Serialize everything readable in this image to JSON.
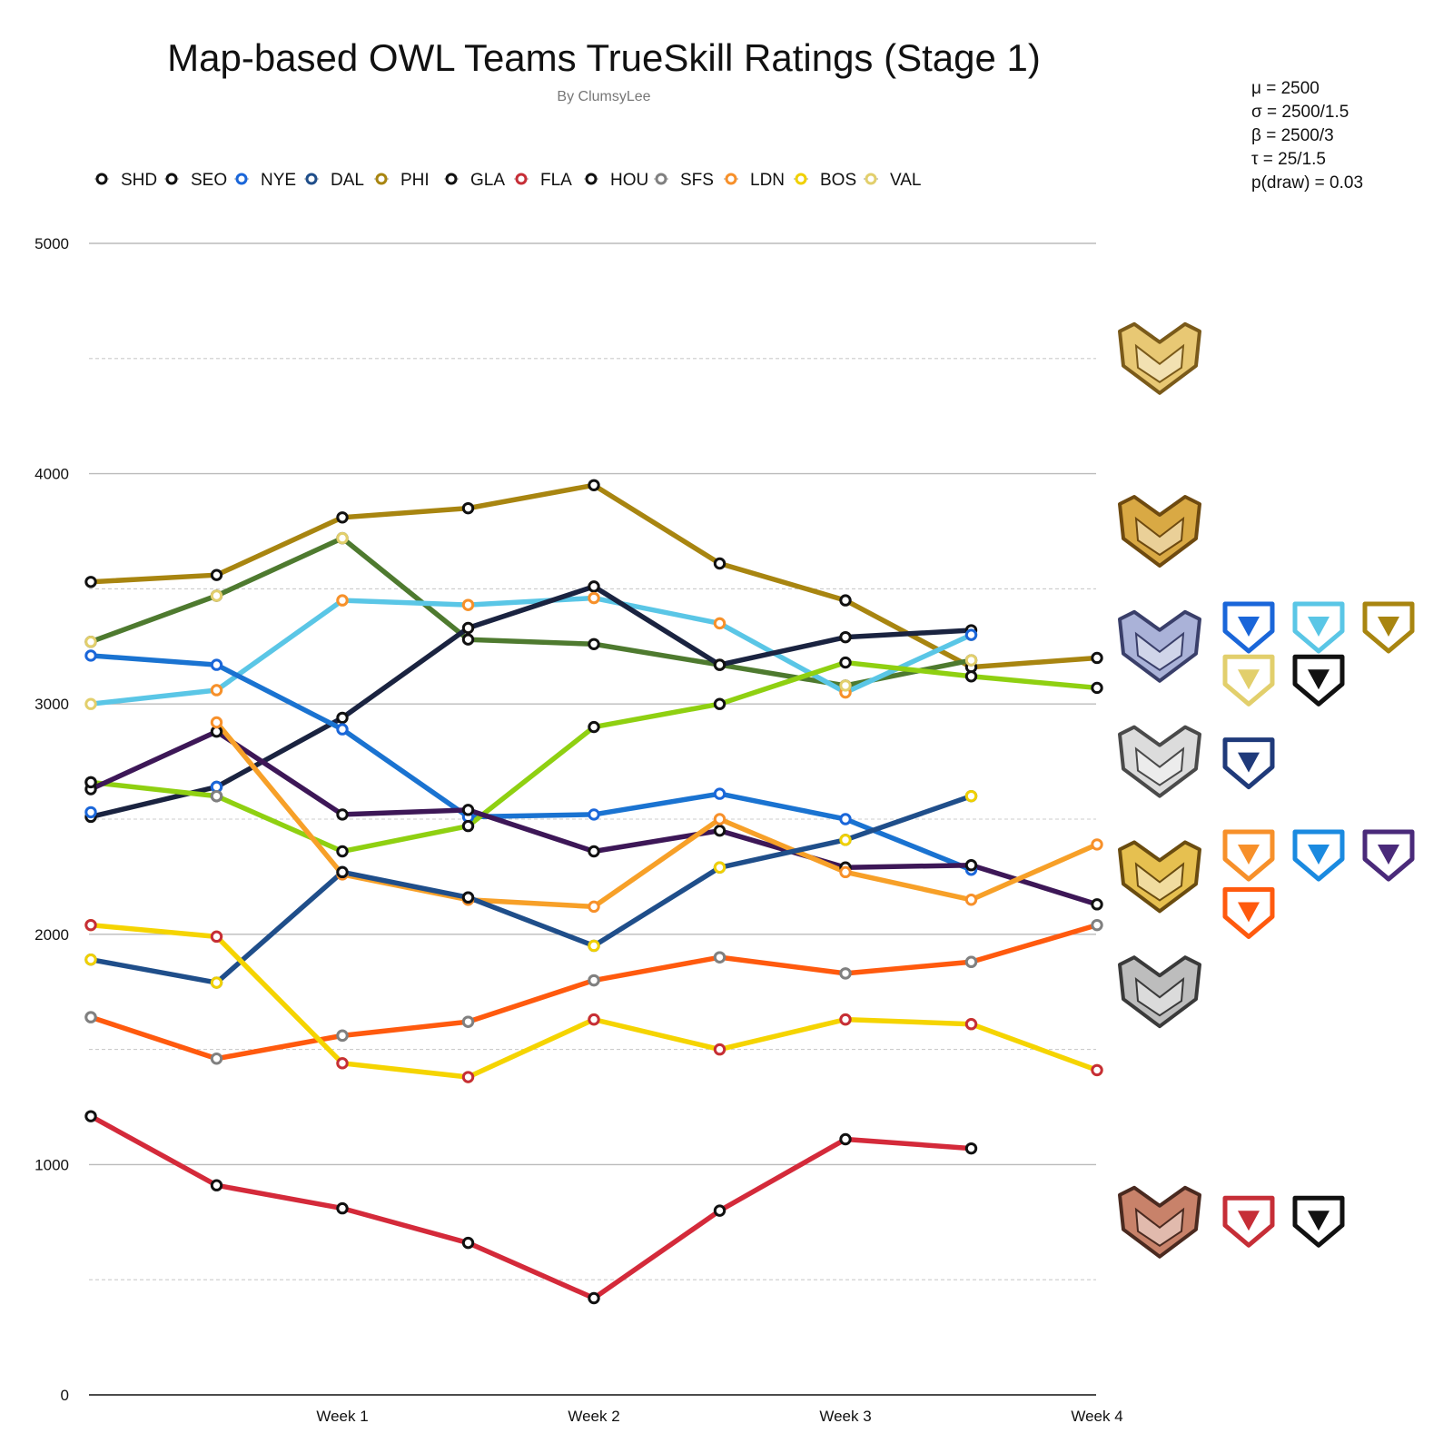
{
  "chart_data": {
    "type": "line",
    "title": "Map-based OWL Teams TrueSkill Ratings (Stage 1)",
    "subtitle": "By ClumsyLee",
    "x_tick_labels": [
      "Week 1",
      "Week 2",
      "Week 3",
      "Week 4"
    ],
    "y_tick_labels": [
      "0",
      "1000",
      "2000",
      "3000",
      "4000",
      "5000"
    ],
    "ylim": [
      0,
      5000
    ],
    "grid": true,
    "legend_position": "top",
    "parameters": [
      "μ = 2500",
      "σ = 2500/1.5",
      "β = 2500/3",
      "τ = 25/1.5",
      "p(draw) = 0.03"
    ],
    "legend": [
      {
        "label": "SHD",
        "color": "#111111"
      },
      {
        "label": "SEO",
        "color": "#111111"
      },
      {
        "label": "NYE",
        "color": "#1a66d9"
      },
      {
        "label": "DAL",
        "color": "#1f4e8a"
      },
      {
        "label": "PHI",
        "color": "#a88510"
      },
      {
        "label": "GLA",
        "color": "#111111"
      },
      {
        "label": "FLA",
        "color": "#c62e37"
      },
      {
        "label": "HOU",
        "color": "#111111"
      },
      {
        "label": "SFS",
        "color": "#808080"
      },
      {
        "label": "LDN",
        "color": "#f7902a"
      },
      {
        "label": "BOS",
        "color": "#f0d000"
      },
      {
        "label": "VAL",
        "color": "#e2cf6c"
      }
    ],
    "series": [
      {
        "color": "#a88510",
        "marker": "#111111",
        "points": [
          [
            0,
            3530
          ],
          [
            1,
            3560
          ],
          [
            2,
            3810
          ],
          [
            3,
            3850
          ],
          [
            4,
            3950
          ],
          [
            5,
            3610
          ],
          [
            6,
            3450
          ],
          [
            7,
            3160
          ],
          [
            8,
            3200
          ]
        ]
      },
      {
        "color": "#4e7a2f",
        "marker": "#111111",
        "points": [
          [
            0,
            3270
          ],
          [
            1,
            3470
          ],
          [
            2,
            3720
          ],
          [
            3,
            3280
          ],
          [
            4,
            3260
          ],
          [
            5,
            3170
          ],
          [
            6,
            3080
          ],
          [
            7,
            3190
          ]
        ]
      },
      {
        "color": "#5ac6e6",
        "marker": "#e2cf6c",
        "points": [
          [
            0,
            3000
          ],
          [
            1,
            3060
          ],
          [
            2,
            3450
          ],
          [
            3,
            3430
          ],
          [
            4,
            3460
          ],
          [
            5,
            3350
          ],
          [
            6,
            3050
          ],
          [
            7,
            3300
          ]
        ]
      },
      {
        "color": "#1a2340",
        "marker": "#111111",
        "points": [
          [
            0,
            2510
          ],
          [
            1,
            2640
          ],
          [
            2,
            2940
          ],
          [
            3,
            3330
          ],
          [
            4,
            3510
          ],
          [
            5,
            3170
          ],
          [
            6,
            3290
          ],
          [
            7,
            3320
          ]
        ]
      },
      {
        "color": "#1a73d1",
        "marker": "#1a66d9",
        "points": [
          [
            0,
            3210
          ],
          [
            1,
            3170
          ],
          [
            2,
            2890
          ],
          [
            3,
            2510
          ],
          [
            4,
            2520
          ],
          [
            5,
            2610
          ],
          [
            6,
            2500
          ],
          [
            7,
            2280
          ]
        ]
      },
      {
        "color": "#8fd011",
        "marker": "#111111",
        "points": [
          [
            0,
            2660
          ],
          [
            1,
            2600
          ],
          [
            2,
            2360
          ],
          [
            3,
            2470
          ],
          [
            4,
            2900
          ],
          [
            5,
            3000
          ],
          [
            6,
            3180
          ],
          [
            7,
            3120
          ],
          [
            8,
            3070
          ]
        ]
      },
      {
        "color": "#3d1757",
        "marker": "#111111",
        "points": [
          [
            0,
            2630
          ],
          [
            1,
            2880
          ],
          [
            2,
            2520
          ],
          [
            3,
            2540
          ],
          [
            4,
            2360
          ],
          [
            5,
            2450
          ],
          [
            6,
            2290
          ],
          [
            7,
            2300
          ],
          [
            8,
            2130
          ]
        ]
      },
      {
        "color": "#f7a028",
        "marker": "#f7902a",
        "points": [
          [
            1,
            2920
          ],
          [
            2,
            2260
          ],
          [
            3,
            2150
          ],
          [
            4,
            2120
          ],
          [
            5,
            2500
          ],
          [
            6,
            2270
          ],
          [
            7,
            2150
          ],
          [
            8,
            2390
          ]
        ]
      },
      {
        "color": "#1f4e8a",
        "marker": "#1f4e8a",
        "points": [
          [
            0,
            1890
          ],
          [
            1,
            1790
          ],
          [
            2,
            2270
          ],
          [
            3,
            2160
          ],
          [
            4,
            1950
          ],
          [
            5,
            2290
          ],
          [
            6,
            2410
          ],
          [
            7,
            2600
          ]
        ]
      },
      {
        "color": "#ff5a0e",
        "marker": "#808080",
        "points": [
          [
            0,
            1640
          ],
          [
            1,
            1460
          ],
          [
            2,
            1560
          ],
          [
            3,
            1620
          ],
          [
            4,
            1800
          ],
          [
            5,
            1900
          ],
          [
            6,
            1830
          ],
          [
            7,
            1880
          ],
          [
            8,
            2040
          ]
        ]
      },
      {
        "color": "#f5d400",
        "marker": "#f0d000",
        "points": [
          [
            0,
            2040
          ],
          [
            1,
            1990
          ],
          [
            2,
            1440
          ],
          [
            3,
            1380
          ],
          [
            4,
            1630
          ],
          [
            5,
            1500
          ],
          [
            6,
            1630
          ],
          [
            7,
            1610
          ],
          [
            8,
            1410
          ]
        ]
      },
      {
        "color": "#d42a3a",
        "marker": "#111111",
        "points": [
          [
            0,
            1210
          ],
          [
            1,
            910
          ],
          [
            2,
            810
          ],
          [
            3,
            660
          ],
          [
            4,
            420
          ],
          [
            5,
            800
          ],
          [
            6,
            1110
          ],
          [
            7,
            1070
          ]
        ]
      }
    ],
    "extra_markers": [
      {
        "x": 0,
        "y": 2530,
        "marker": "#1a66d9"
      },
      {
        "x": 0,
        "y": 2040,
        "marker": "#c62e37"
      },
      {
        "x": 0,
        "y": 1890,
        "marker": "#f0d000"
      },
      {
        "x": 0,
        "y": 1640,
        "marker": "#808080"
      },
      {
        "x": 0,
        "y": 2660,
        "marker": "#111111"
      },
      {
        "x": 0,
        "y": 3270,
        "marker": "#e2cf6c"
      },
      {
        "x": 1,
        "y": 3060,
        "marker": "#f7902a"
      },
      {
        "x": 1,
        "y": 3470,
        "marker": "#e2cf6c"
      },
      {
        "x": 1,
        "y": 2640,
        "marker": "#1a66d9"
      },
      {
        "x": 1,
        "y": 1990,
        "marker": "#c62e37"
      },
      {
        "x": 1,
        "y": 1790,
        "marker": "#f0d000"
      },
      {
        "x": 1,
        "y": 2600,
        "marker": "#808080"
      },
      {
        "x": 2,
        "y": 3720,
        "marker": "#e2cf6c"
      },
      {
        "x": 2,
        "y": 3450,
        "marker": "#f7902a"
      },
      {
        "x": 2,
        "y": 1440,
        "marker": "#c62e37"
      },
      {
        "x": 2,
        "y": 1560,
        "marker": "#808080"
      },
      {
        "x": 2,
        "y": 2270,
        "marker": "#111111"
      },
      {
        "x": 3,
        "y": 3430,
        "marker": "#f7902a"
      },
      {
        "x": 3,
        "y": 1380,
        "marker": "#c62e37"
      },
      {
        "x": 3,
        "y": 1620,
        "marker": "#808080"
      },
      {
        "x": 3,
        "y": 2160,
        "marker": "#111111"
      },
      {
        "x": 4,
        "y": 3460,
        "marker": "#f7902a"
      },
      {
        "x": 4,
        "y": 1950,
        "marker": "#f0d000"
      },
      {
        "x": 4,
        "y": 1630,
        "marker": "#c62e37"
      },
      {
        "x": 4,
        "y": 1800,
        "marker": "#808080"
      },
      {
        "x": 5,
        "y": 3350,
        "marker": "#f7902a"
      },
      {
        "x": 5,
        "y": 2290,
        "marker": "#f0d000"
      },
      {
        "x": 5,
        "y": 1500,
        "marker": "#c62e37"
      },
      {
        "x": 5,
        "y": 1900,
        "marker": "#808080"
      },
      {
        "x": 6,
        "y": 3050,
        "marker": "#f7902a"
      },
      {
        "x": 6,
        "y": 3080,
        "marker": "#e2cf6c"
      },
      {
        "x": 6,
        "y": 2410,
        "marker": "#f0d000"
      },
      {
        "x": 6,
        "y": 1630,
        "marker": "#c62e37"
      },
      {
        "x": 6,
        "y": 1830,
        "marker": "#808080"
      },
      {
        "x": 7,
        "y": 3300,
        "marker": "#1a66d9"
      },
      {
        "x": 7,
        "y": 3190,
        "marker": "#e2cf6c"
      },
      {
        "x": 7,
        "y": 2600,
        "marker": "#f0d000"
      },
      {
        "x": 7,
        "y": 1610,
        "marker": "#c62e37"
      },
      {
        "x": 7,
        "y": 1880,
        "marker": "#808080"
      },
      {
        "x": 8,
        "y": 1410,
        "marker": "#c62e37"
      }
    ]
  },
  "rank_badges": [
    {
      "name": "grandmaster-badge-icon",
      "value": 4500,
      "fill": "#e8c874",
      "stroke": "#7a5a1a"
    },
    {
      "name": "master-badge-icon",
      "value": 3750,
      "fill": "#d9a944",
      "stroke": "#6e4a10"
    },
    {
      "name": "diamond-badge-icon",
      "value": 3250,
      "fill": "#aab2d8",
      "stroke": "#3a3f6a"
    },
    {
      "name": "platinum-badge-icon",
      "value": 2750,
      "fill": "#dcdcdc",
      "stroke": "#4a4a4a"
    },
    {
      "name": "gold-badge-icon",
      "value": 2250,
      "fill": "#e6c050",
      "stroke": "#6a4c10"
    },
    {
      "name": "silver-badge-icon",
      "value": 1750,
      "fill": "#bdbdbd",
      "stroke": "#3a3a3a"
    },
    {
      "name": "bronze-badge-icon",
      "value": 750,
      "fill": "#c8826a",
      "stroke": "#4a2a20"
    }
  ],
  "team_logos": [
    {
      "name": "new-york-excelsior-logo-icon",
      "value": 3340,
      "col": 0,
      "color": "#1a66d9"
    },
    {
      "name": "london-spitfire-logo-icon",
      "value": 3340,
      "col": 1,
      "color": "#5ac6e6"
    },
    {
      "name": "seoul-dynasty-logo-icon",
      "value": 3340,
      "col": 2,
      "color": "#a88510"
    },
    {
      "name": "los-angeles-valiant-logo-icon",
      "value": 3110,
      "col": 0,
      "color": "#e2cf6c"
    },
    {
      "name": "houston-outlaws-logo-icon",
      "value": 3110,
      "col": 1,
      "color": "#111111"
    },
    {
      "name": "boston-uprising-logo-icon",
      "value": 2750,
      "col": 0,
      "color": "#1f3a7a"
    },
    {
      "name": "philadelphia-fusion-logo-icon",
      "value": 2350,
      "col": 0,
      "color": "#f7902a"
    },
    {
      "name": "dallas-fuel-logo-icon",
      "value": 2350,
      "col": 1,
      "color": "#1a8ae0"
    },
    {
      "name": "los-angeles-gladiators-logo-icon",
      "value": 2350,
      "col": 2,
      "color": "#4a2a7a"
    },
    {
      "name": "san-francisco-shock-logo-icon",
      "value": 2100,
      "col": 0,
      "color": "#ff5a0e"
    },
    {
      "name": "florida-mayhem-logo-icon",
      "value": 760,
      "col": 0,
      "color": "#c62e37"
    },
    {
      "name": "shanghai-dragons-logo-icon",
      "value": 760,
      "col": 1,
      "color": "#111111"
    }
  ]
}
